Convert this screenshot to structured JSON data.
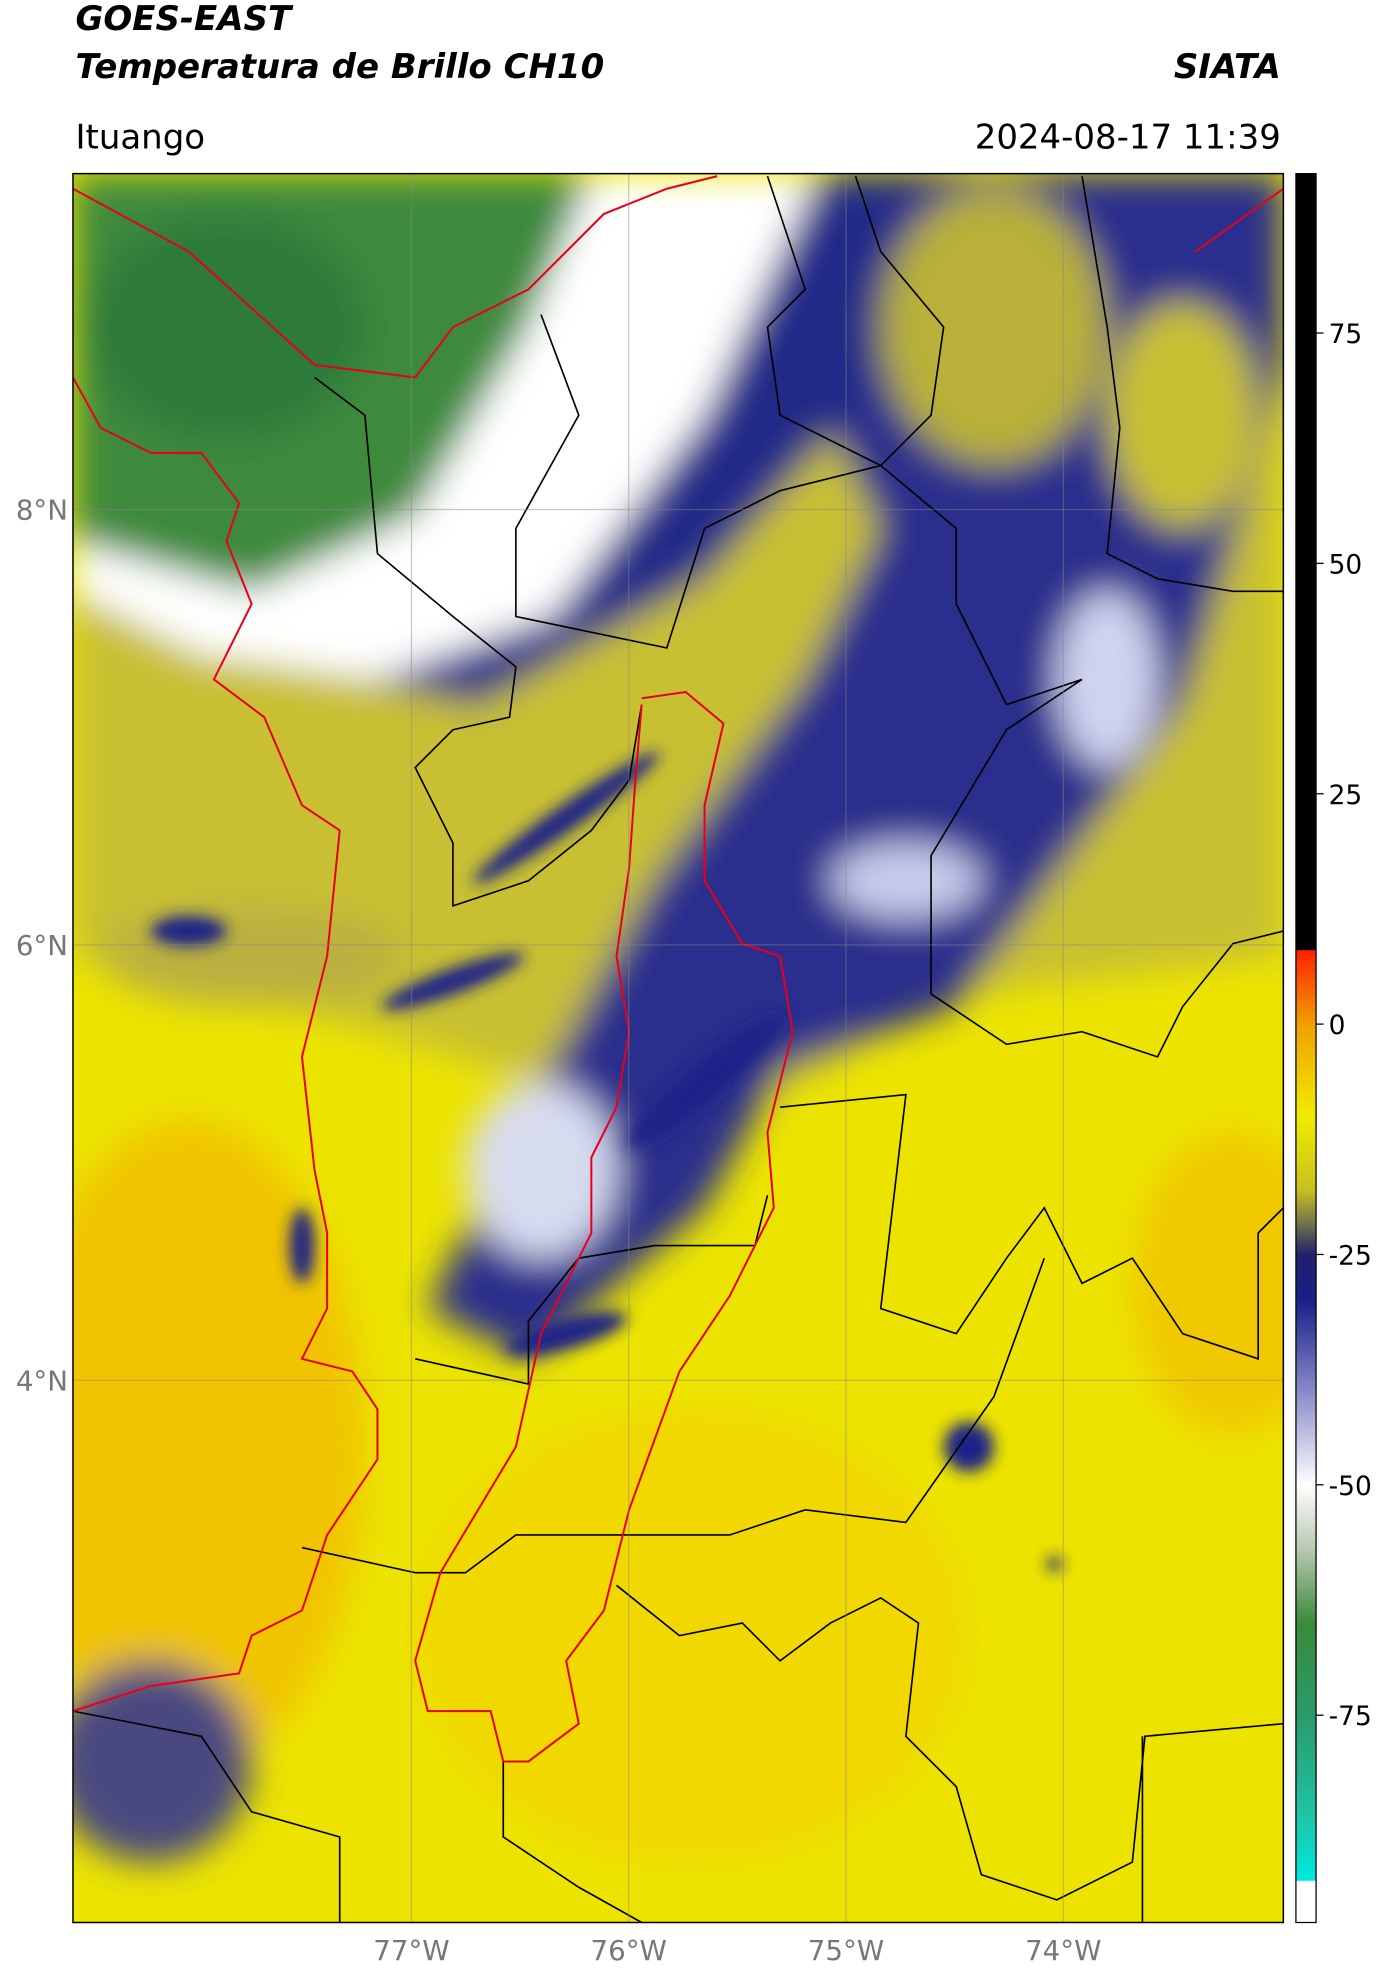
{
  "header": {
    "title": "GOES-EAST",
    "subtitle": "Temperatura de Brillo CH10",
    "organization": "SIATA",
    "location": "Ituango",
    "datetime": "2024-08-17 11:39"
  },
  "map": {
    "latlim": [
      1.509,
      9.543
    ],
    "lonlim": [
      -78.558,
      -72.987
    ],
    "grid": true,
    "latticks": [
      {
        "value": 4,
        "label": "4°N"
      },
      {
        "value": 6,
        "label": "6°N"
      },
      {
        "value": 8,
        "label": "8°N"
      }
    ],
    "lonticks": [
      {
        "value": -77,
        "label": "77°W"
      },
      {
        "value": -76,
        "label": "76°W"
      },
      {
        "value": -75,
        "label": "75°W"
      },
      {
        "value": -74,
        "label": "74°W"
      }
    ]
  },
  "colorbar": {
    "lim": [
      -97.5,
      92.3
    ],
    "ticks": [
      -75,
      -50,
      -25,
      0,
      25,
      50,
      75
    ],
    "stops": [
      {
        "value": -97.5,
        "color": "#ffffff"
      },
      {
        "value": -93,
        "color": "#ffffff"
      },
      {
        "value": -92.9,
        "color": "#00e8e0"
      },
      {
        "value": -85,
        "color": "#20c0a0"
      },
      {
        "value": -75,
        "color": "#2a9a6a"
      },
      {
        "value": -65,
        "color": "#3a8a3a"
      },
      {
        "value": -57,
        "color": "#b8c8b0"
      },
      {
        "value": -50,
        "color": "#ffffff"
      },
      {
        "value": -40,
        "color": "#8a8cc8"
      },
      {
        "value": -30,
        "color": "#1a1f8a"
      },
      {
        "value": -25,
        "color": "#20206a"
      },
      {
        "value": -22,
        "color": "#6a6a50"
      },
      {
        "value": -18,
        "color": "#c8c020"
      },
      {
        "value": -10,
        "color": "#f0ec00"
      },
      {
        "value": 0,
        "color": "#f0a000"
      },
      {
        "value": 8,
        "color": "#ff2000"
      },
      {
        "value": 8.1,
        "color": "#000000"
      },
      {
        "value": 92.3,
        "color": "#000000"
      }
    ]
  }
}
